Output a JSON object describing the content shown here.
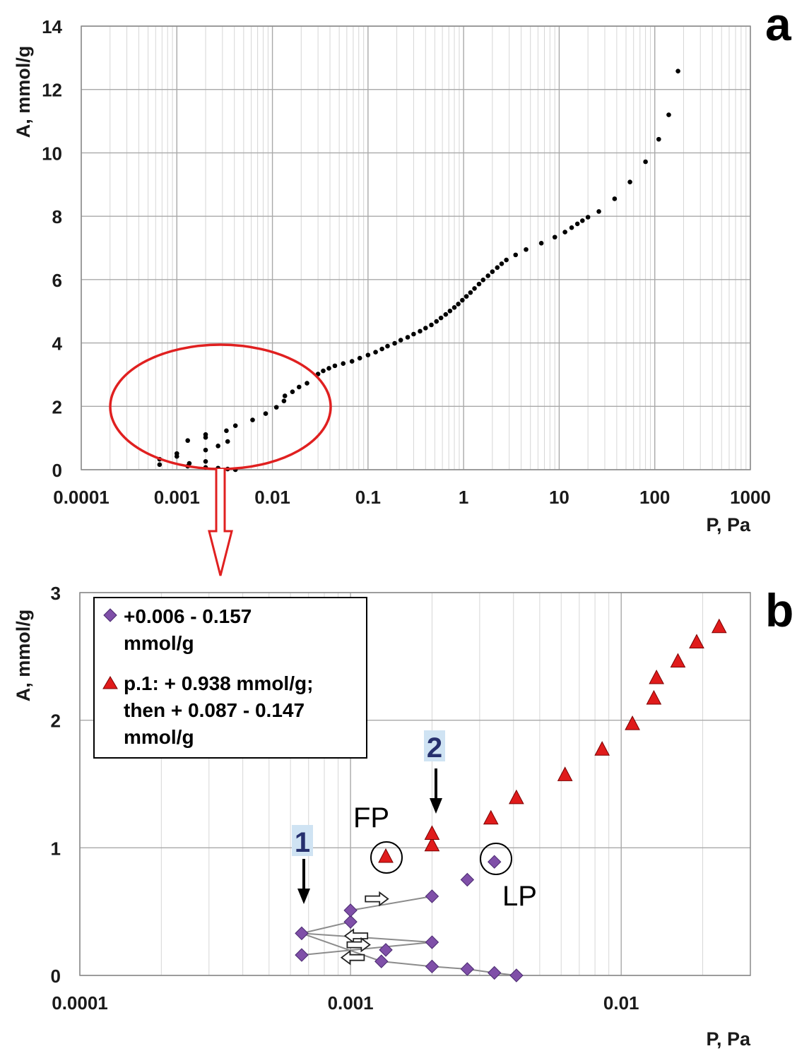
{
  "chart_data": [
    {
      "panel_label": "a",
      "type": "scatter",
      "xlabel": "P, Pa",
      "ylabel": "A, mmol/g",
      "xscale": "log",
      "xlim": [
        0.0001,
        1000
      ],
      "ylim": [
        0,
        14
      ],
      "xticks": [
        "0.0001",
        "0.001",
        "0.01",
        "0.1",
        "1",
        "10",
        "100",
        "1000"
      ],
      "yticks": [
        "0",
        "2",
        "4",
        "6",
        "8",
        "10",
        "12",
        "14"
      ],
      "grid": true,
      "marker_color": "#000000",
      "highlight_color": "#e02020",
      "series": [
        {
          "points": [
            [
              0.00066,
              0.16
            ],
            [
              0.00066,
              0.33
            ],
            [
              0.001,
              0.42
            ],
            [
              0.001,
              0.51
            ],
            [
              0.0013,
              0.92
            ],
            [
              0.0013,
              0.11
            ],
            [
              0.00135,
              0.2
            ],
            [
              0.002,
              1.02
            ],
            [
              0.002,
              1.11
            ],
            [
              0.002,
              0.62
            ],
            [
              0.002,
              0.26
            ],
            [
              0.002,
              0.07
            ],
            [
              0.0027,
              0.75
            ],
            [
              0.0027,
              0.05
            ],
            [
              0.0034,
              0.89
            ],
            [
              0.0034,
              0.02
            ],
            [
              0.0041,
              0.0
            ],
            [
              0.0033,
              1.23
            ],
            [
              0.0041,
              1.39
            ],
            [
              0.0062,
              1.57
            ],
            [
              0.0085,
              1.77
            ],
            [
              0.011,
              1.97
            ],
            [
              0.0132,
              2.17
            ],
            [
              0.0135,
              2.33
            ],
            [
              0.0162,
              2.46
            ],
            [
              0.019,
              2.61
            ],
            [
              0.023,
              2.73
            ],
            [
              0.03,
              3.02
            ],
            [
              0.034,
              3.12
            ],
            [
              0.039,
              3.2
            ],
            [
              0.045,
              3.28
            ],
            [
              0.055,
              3.35
            ],
            [
              0.068,
              3.42
            ],
            [
              0.082,
              3.52
            ],
            [
              0.1,
              3.62
            ],
            [
              0.12,
              3.71
            ],
            [
              0.14,
              3.81
            ],
            [
              0.16,
              3.9
            ],
            [
              0.19,
              3.99
            ],
            [
              0.22,
              4.09
            ],
            [
              0.26,
              4.18
            ],
            [
              0.3,
              4.28
            ],
            [
              0.35,
              4.37
            ],
            [
              0.4,
              4.47
            ],
            [
              0.46,
              4.57
            ],
            [
              0.52,
              4.68
            ],
            [
              0.58,
              4.79
            ],
            [
              0.65,
              4.9
            ],
            [
              0.72,
              5.01
            ],
            [
              0.8,
              5.12
            ],
            [
              0.88,
              5.23
            ],
            [
              0.97,
              5.35
            ],
            [
              1.07,
              5.47
            ],
            [
              1.18,
              5.59
            ],
            [
              1.3,
              5.72
            ],
            [
              1.45,
              5.86
            ],
            [
              1.6,
              5.99
            ],
            [
              1.8,
              6.12
            ],
            [
              2.0,
              6.25
            ],
            [
              2.25,
              6.38
            ],
            [
              2.5,
              6.5
            ],
            [
              2.8,
              6.62
            ],
            [
              3.5,
              6.78
            ],
            [
              4.5,
              6.95
            ],
            [
              6.5,
              7.15
            ],
            [
              9.0,
              7.34
            ],
            [
              11.5,
              7.5
            ],
            [
              13.5,
              7.64
            ],
            [
              15.5,
              7.76
            ],
            [
              17.5,
              7.86
            ],
            [
              20.0,
              7.97
            ],
            [
              26.0,
              8.15
            ],
            [
              38.0,
              8.55
            ],
            [
              55.0,
              9.08
            ],
            [
              80.0,
              9.72
            ],
            [
              110.0,
              10.43
            ],
            [
              140.0,
              11.2
            ],
            [
              175.0,
              12.58
            ]
          ]
        }
      ]
    },
    {
      "panel_label": "b",
      "type": "scatter",
      "xlabel": "P, Pa",
      "ylabel": "A, mmol/g",
      "xscale": "log",
      "xlim": [
        0.0001,
        0.03
      ],
      "ylim": [
        0,
        3
      ],
      "xticks": [
        "0.0001",
        "0.001",
        "0.01"
      ],
      "yticks": [
        "0",
        "1",
        "2",
        "3"
      ],
      "grid": true,
      "legend_position": "top-left",
      "series": [
        {
          "name_line1": "+0.006 - 0.157",
          "name_line2": "mmol/g",
          "marker": "diamond",
          "color": "#7f4fa8",
          "points": [
            [
              0.00066,
              0.16
            ],
            [
              0.00066,
              0.33
            ],
            [
              0.001,
              0.42
            ],
            [
              0.001,
              0.51
            ],
            [
              0.002,
              0.62
            ],
            [
              0.0027,
              0.75
            ],
            [
              0.0034,
              0.89
            ],
            [
              0.002,
              0.26
            ],
            [
              0.00135,
              0.2
            ],
            [
              0.0013,
              0.11
            ],
            [
              0.002,
              0.07
            ],
            [
              0.0027,
              0.05
            ],
            [
              0.0034,
              0.02
            ],
            [
              0.0041,
              0.0
            ]
          ],
          "connected_paths": [
            [
              [
                0.00066,
                0.16
              ],
              [
                0.002,
                0.26
              ],
              [
                0.00066,
                0.33
              ],
              [
                0.0013,
                0.11
              ],
              [
                0.002,
                0.07
              ],
              [
                0.0027,
                0.05
              ],
              [
                0.0034,
                0.02
              ],
              [
                0.0041,
                0.0
              ]
            ],
            [
              [
                0.00066,
                0.33
              ],
              [
                0.001,
                0.42
              ],
              [
                0.001,
                0.51
              ],
              [
                0.002,
                0.62
              ]
            ]
          ]
        },
        {
          "name_line1": "p.1: + 0.938 mmol/g;",
          "name_line2": "then + 0.087 - 0.147",
          "name_line3": "mmol/g",
          "marker": "triangle",
          "color": "#e01b1b",
          "points": [
            [
              0.00135,
              0.93
            ],
            [
              0.002,
              1.02
            ],
            [
              0.002,
              1.11
            ],
            [
              0.0033,
              1.23
            ],
            [
              0.0041,
              1.39
            ],
            [
              0.0062,
              1.57
            ],
            [
              0.0085,
              1.77
            ],
            [
              0.011,
              1.97
            ],
            [
              0.0132,
              2.17
            ],
            [
              0.0135,
              2.33
            ],
            [
              0.0162,
              2.46
            ],
            [
              0.019,
              2.61
            ],
            [
              0.023,
              2.73
            ]
          ]
        }
      ],
      "annotations": {
        "fp": {
          "text": "FP",
          "at": [
            0.00135,
            0.93
          ]
        },
        "lp": {
          "text": "LP",
          "at": [
            0.0034,
            0.89
          ]
        },
        "marker_1": {
          "text": "1",
          "at": [
            0.00066,
            0.33
          ]
        },
        "marker_2": {
          "text": "2",
          "at": [
            0.002,
            1.11
          ]
        }
      },
      "direction_arrows": [
        {
          "at": [
            0.00125,
            0.6
          ],
          "dir": "right"
        },
        {
          "at": [
            0.00105,
            0.31
          ],
          "dir": "left"
        },
        {
          "at": [
            0.00107,
            0.24
          ],
          "dir": "right"
        },
        {
          "at": [
            0.00102,
            0.14
          ],
          "dir": "left"
        }
      ]
    }
  ]
}
